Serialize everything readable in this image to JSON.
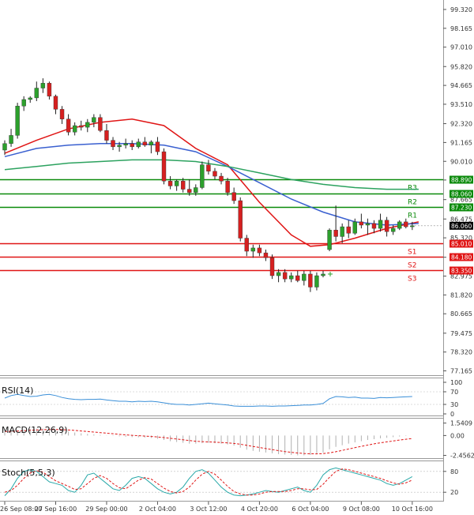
{
  "chart_data": {
    "type": "candlestick",
    "y_ticks": [
      "99.320",
      "98.165",
      "97.010",
      "95.820",
      "94.665",
      "93.510",
      "92.320",
      "91.165",
      "90.010",
      "88.865",
      "87.665",
      "86.475",
      "85.320",
      "84.130",
      "82.975",
      "81.820",
      "80.665",
      "79.475",
      "78.320",
      "77.165"
    ],
    "ylim": [
      76.9,
      99.9
    ],
    "x_ticks": [
      "26 Sep 08:00",
      "27 Sep 16:00",
      "29 Sep 00:00",
      "2 Oct 04:00",
      "3 Oct 12:00",
      "4 Oct 20:00",
      "6 Oct 04:00",
      "9 Oct 08:00",
      "10 Oct 16:00"
    ],
    "x_tick_index": [
      0,
      8,
      16,
      24,
      32,
      40,
      48,
      56,
      64
    ],
    "candles": [
      [
        90.7,
        91.3,
        90.4,
        91.1
      ],
      [
        91.1,
        92.0,
        90.9,
        91.6
      ],
      [
        91.6,
        93.6,
        91.4,
        93.4
      ],
      [
        93.4,
        94.0,
        93.1,
        93.8
      ],
      [
        93.8,
        94.0,
        93.6,
        93.9
      ],
      [
        93.9,
        94.9,
        93.7,
        94.5
      ],
      [
        94.5,
        95.1,
        94.2,
        94.8
      ],
      [
        94.8,
        94.9,
        93.8,
        94.0
      ],
      [
        94.0,
        94.1,
        92.9,
        93.2
      ],
      [
        93.2,
        93.4,
        92.3,
        92.6
      ],
      [
        92.6,
        92.9,
        91.6,
        91.8
      ],
      [
        91.8,
        92.4,
        91.6,
        92.2
      ],
      [
        92.2,
        92.5,
        91.9,
        92.1
      ],
      [
        92.1,
        92.6,
        91.8,
        92.4
      ],
      [
        92.4,
        92.9,
        92.1,
        92.7
      ],
      [
        92.7,
        92.9,
        91.8,
        91.9
      ],
      [
        91.9,
        92.3,
        91.1,
        91.3
      ],
      [
        91.3,
        91.5,
        90.7,
        90.9
      ],
      [
        90.9,
        91.2,
        90.6,
        91.0
      ],
      [
        91.0,
        91.4,
        90.8,
        91.1
      ],
      [
        91.1,
        91.3,
        90.7,
        90.9
      ],
      [
        90.9,
        91.4,
        90.8,
        91.2
      ],
      [
        91.2,
        91.5,
        90.9,
        91.0
      ],
      [
        91.0,
        91.3,
        90.5,
        91.2
      ],
      [
        91.2,
        91.5,
        90.4,
        90.6
      ],
      [
        90.6,
        90.8,
        88.6,
        88.8
      ],
      [
        88.8,
        89.1,
        88.3,
        88.5
      ],
      [
        88.5,
        88.9,
        88.2,
        88.8
      ],
      [
        88.8,
        89.0,
        88.1,
        88.3
      ],
      [
        88.3,
        88.9,
        87.9,
        88.1
      ],
      [
        88.1,
        88.6,
        87.9,
        88.4
      ],
      [
        88.4,
        90.0,
        88.3,
        89.8
      ],
      [
        89.8,
        90.1,
        89.2,
        89.4
      ],
      [
        89.4,
        89.6,
        88.9,
        89.1
      ],
      [
        89.1,
        89.3,
        88.6,
        88.8
      ],
      [
        88.8,
        89.0,
        87.9,
        88.1
      ],
      [
        88.1,
        88.4,
        87.4,
        87.6
      ],
      [
        87.6,
        87.8,
        85.1,
        85.3
      ],
      [
        85.3,
        85.5,
        84.2,
        84.5
      ],
      [
        84.5,
        84.9,
        84.1,
        84.7
      ],
      [
        84.7,
        84.9,
        84.2,
        84.4
      ],
      [
        84.4,
        84.6,
        83.9,
        84.1
      ],
      [
        84.1,
        84.3,
        82.8,
        83.0
      ],
      [
        83.0,
        83.4,
        82.6,
        83.2
      ],
      [
        83.2,
        83.4,
        82.6,
        82.8
      ],
      [
        82.8,
        83.2,
        82.6,
        83.0
      ],
      [
        83.0,
        83.3,
        82.6,
        82.7
      ],
      [
        82.7,
        83.3,
        82.4,
        83.1
      ],
      [
        83.1,
        83.3,
        82.0,
        82.3
      ],
      [
        82.3,
        83.2,
        82.1,
        83.0
      ],
      [
        83.0,
        83.3,
        82.9,
        83.1
      ],
      [
        84.6,
        85.9,
        84.5,
        85.8
      ],
      [
        85.8,
        87.3,
        85.1,
        85.4
      ],
      [
        85.4,
        86.2,
        85.0,
        86.0
      ],
      [
        86.0,
        86.4,
        85.3,
        85.6
      ],
      [
        85.6,
        86.5,
        85.5,
        86.3
      ],
      [
        86.3,
        86.8,
        85.9,
        86.1
      ],
      [
        86.1,
        86.5,
        85.5,
        86.2
      ],
      [
        86.2,
        86.4,
        85.6,
        85.9
      ],
      [
        85.9,
        86.8,
        85.7,
        86.4
      ],
      [
        86.4,
        86.6,
        85.4,
        85.7
      ],
      [
        85.7,
        86.1,
        85.5,
        85.9
      ],
      [
        85.9,
        86.4,
        85.8,
        86.3
      ],
      [
        86.3,
        86.5,
        85.9,
        86.0
      ],
      [
        86.0,
        86.3,
        85.8,
        86.06
      ]
    ],
    "series": [
      {
        "values": [
          [
            0,
            90.5
          ],
          [
            5,
            91.3
          ],
          [
            10,
            92.0
          ],
          [
            15,
            92.4
          ],
          [
            20,
            92.6
          ],
          [
            25,
            92.2
          ],
          [
            30,
            90.8
          ],
          [
            35,
            89.8
          ],
          [
            40,
            87.5
          ],
          [
            45,
            85.5
          ],
          [
            48,
            84.8
          ],
          [
            51,
            84.9
          ],
          [
            55,
            85.3
          ],
          [
            60,
            85.9
          ],
          [
            65,
            86.3
          ]
        ]
      },
      {
        "values": [
          [
            0,
            90.3
          ],
          [
            5,
            90.8
          ],
          [
            10,
            91.0
          ],
          [
            15,
            91.1
          ],
          [
            20,
            91.1
          ],
          [
            25,
            91.0
          ],
          [
            30,
            90.6
          ],
          [
            35,
            89.7
          ],
          [
            40,
            88.7
          ],
          [
            45,
            87.7
          ],
          [
            50,
            86.9
          ],
          [
            55,
            86.3
          ],
          [
            60,
            86.1
          ],
          [
            65,
            86.2
          ]
        ]
      },
      {
        "values": [
          [
            0,
            89.5
          ],
          [
            5,
            89.7
          ],
          [
            10,
            89.9
          ],
          [
            15,
            90.0
          ],
          [
            20,
            90.1
          ],
          [
            25,
            90.1
          ],
          [
            30,
            90.0
          ],
          [
            35,
            89.7
          ],
          [
            40,
            89.3
          ],
          [
            45,
            88.9
          ],
          [
            50,
            88.6
          ],
          [
            55,
            88.4
          ],
          [
            60,
            88.3
          ],
          [
            65,
            88.3
          ]
        ]
      }
    ],
    "levels": [
      {
        "label": "R3",
        "value": 88.89,
        "tag": "88.890",
        "color": "#0a8a0a"
      },
      {
        "label": "R2",
        "value": 88.06,
        "tag": "88.060",
        "color": "#0a8a0a"
      },
      {
        "label": "R1",
        "value": 87.23,
        "tag": "87.230",
        "color": "#0a8a0a"
      },
      {
        "label": "S1",
        "value": 85.01,
        "tag": "85.010",
        "color": "#e01515"
      },
      {
        "label": "S2",
        "value": 84.18,
        "tag": "84.180",
        "color": "#e01515"
      },
      {
        "label": "S3",
        "value": 83.35,
        "tag": "83.350",
        "color": "#e01515"
      }
    ],
    "current_price": {
      "value": 86.06,
      "tag": "86.060"
    },
    "rsi": {
      "title": "RSI(14)",
      "ticks": [
        "100",
        "70",
        "30",
        "0"
      ],
      "ylim": [
        0,
        100
      ],
      "values": [
        50,
        58,
        62,
        58,
        55,
        56,
        60,
        62,
        58,
        52,
        48,
        46,
        45,
        46,
        46,
        47,
        44,
        42,
        40,
        40,
        38,
        40,
        39,
        40,
        38,
        35,
        32,
        30,
        30,
        28,
        30,
        32,
        34,
        32,
        30,
        28,
        25,
        24,
        24,
        24,
        25,
        25,
        24,
        25,
        25,
        26,
        27,
        28,
        28,
        30,
        33,
        48,
        55,
        54,
        52,
        53,
        50,
        50,
        49,
        52,
        51,
        52,
        53,
        54,
        55
      ]
    },
    "macd": {
      "title": "MACD(12,26,9)",
      "ticks": [
        "1.5409",
        "0.00",
        "-2.4562"
      ],
      "ylim": [
        -2.6,
        1.7
      ],
      "histogram": [
        0.45,
        0.55,
        0.65,
        0.75,
        0.8,
        0.85,
        0.85,
        0.8,
        0.72,
        0.62,
        0.5,
        0.38,
        0.28,
        0.2,
        0.14,
        0.08,
        0.02,
        -0.05,
        -0.1,
        -0.15,
        -0.2,
        -0.22,
        -0.25,
        -0.3,
        -0.4,
        -0.55,
        -0.7,
        -0.8,
        -0.9,
        -1.0,
        -1.0,
        -0.95,
        -0.9,
        -0.95,
        -1.0,
        -1.1,
        -1.25,
        -1.5,
        -1.75,
        -1.9,
        -2.0,
        -2.1,
        -2.2,
        -2.3,
        -2.35,
        -2.4,
        -2.45,
        -2.45,
        -2.4,
        -2.3,
        -2.1,
        -1.7,
        -1.4,
        -1.2,
        -1.0,
        -0.85,
        -0.7,
        -0.55,
        -0.45,
        -0.35,
        -0.28,
        -0.2,
        -0.12,
        -0.05,
        0.0
      ],
      "signal": [
        0.5,
        0.52,
        0.56,
        0.6,
        0.65,
        0.68,
        0.72,
        0.74,
        0.74,
        0.72,
        0.68,
        0.63,
        0.57,
        0.5,
        0.43,
        0.36,
        0.29,
        0.22,
        0.15,
        0.09,
        0.03,
        -0.02,
        -0.07,
        -0.12,
        -0.18,
        -0.25,
        -0.34,
        -0.43,
        -0.53,
        -0.62,
        -0.7,
        -0.75,
        -0.79,
        -0.82,
        -0.86,
        -0.91,
        -0.98,
        -1.08,
        -1.21,
        -1.35,
        -1.48,
        -1.61,
        -1.74,
        -1.87,
        -1.98,
        -2.08,
        -2.16,
        -2.22,
        -2.26,
        -2.27,
        -2.24,
        -2.14,
        -2.0,
        -1.84,
        -1.67,
        -1.5,
        -1.34,
        -1.18,
        -1.03,
        -0.9,
        -0.78,
        -0.67,
        -0.56,
        -0.46,
        -0.37
      ]
    },
    "stoch": {
      "title": "Stoch(5,5,3)",
      "ticks": [
        "80",
        "20"
      ],
      "ylim": [
        0,
        100
      ],
      "k": [
        10,
        30,
        60,
        80,
        85,
        80,
        65,
        50,
        45,
        40,
        25,
        20,
        40,
        70,
        75,
        60,
        45,
        30,
        25,
        40,
        60,
        65,
        60,
        45,
        30,
        20,
        15,
        20,
        35,
        60,
        80,
        85,
        75,
        55,
        35,
        20,
        12,
        10,
        12,
        15,
        20,
        25,
        22,
        20,
        25,
        30,
        35,
        25,
        20,
        40,
        70,
        85,
        90,
        85,
        80,
        75,
        70,
        65,
        60,
        55,
        45,
        40,
        45,
        55,
        65
      ],
      "d": [
        20,
        25,
        40,
        60,
        75,
        82,
        78,
        65,
        53,
        45,
        37,
        28,
        30,
        45,
        60,
        68,
        60,
        45,
        33,
        30,
        42,
        55,
        62,
        58,
        45,
        32,
        22,
        18,
        22,
        35,
        55,
        72,
        80,
        72,
        55,
        37,
        22,
        15,
        12,
        12,
        15,
        20,
        22,
        22,
        22,
        25,
        30,
        30,
        27,
        28,
        43,
        63,
        80,
        87,
        85,
        80,
        75,
        70,
        65,
        60,
        53,
        47,
        43,
        47,
        55
      ]
    }
  }
}
